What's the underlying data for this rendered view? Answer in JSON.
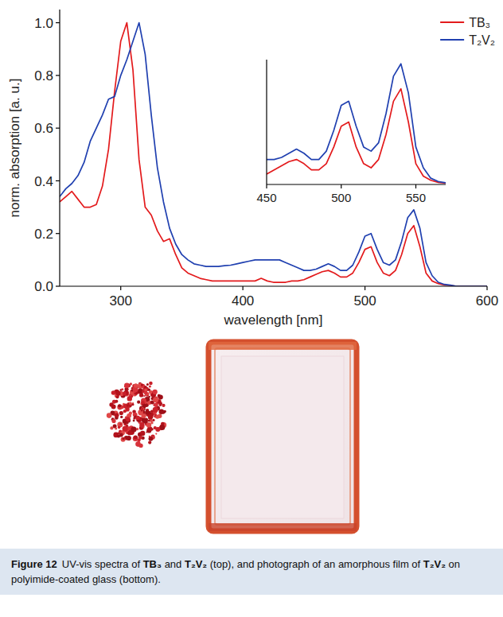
{
  "chart_data": [
    {
      "type": "line",
      "x_label": "wavelength [nm]",
      "y_label": "norm. absorption [a. u.]",
      "x": [
        250,
        255,
        260,
        265,
        270,
        275,
        280,
        285,
        290,
        295,
        300,
        305,
        310,
        315,
        320,
        325,
        330,
        335,
        340,
        345,
        350,
        355,
        360,
        365,
        370,
        375,
        380,
        385,
        390,
        395,
        400,
        405,
        410,
        415,
        420,
        425,
        430,
        435,
        440,
        445,
        450,
        455,
        460,
        465,
        470,
        475,
        480,
        485,
        490,
        495,
        500,
        505,
        510,
        515,
        520,
        525,
        530,
        535,
        540,
        545,
        550,
        555,
        560,
        565,
        570,
        575,
        580,
        585,
        590,
        595,
        600
      ],
      "series": [
        {
          "name": "TB₃",
          "color": "#e31a1c",
          "values": [
            0.32,
            0.34,
            0.36,
            0.33,
            0.3,
            0.3,
            0.31,
            0.38,
            0.52,
            0.74,
            0.93,
            1.0,
            0.82,
            0.48,
            0.3,
            0.27,
            0.21,
            0.17,
            0.18,
            0.12,
            0.07,
            0.05,
            0.04,
            0.03,
            0.025,
            0.02,
            0.02,
            0.02,
            0.02,
            0.02,
            0.02,
            0.02,
            0.02,
            0.03,
            0.02,
            0.015,
            0.015,
            0.015,
            0.02,
            0.02,
            0.025,
            0.035,
            0.045,
            0.055,
            0.06,
            0.05,
            0.035,
            0.035,
            0.05,
            0.09,
            0.14,
            0.15,
            0.09,
            0.05,
            0.04,
            0.06,
            0.12,
            0.2,
            0.23,
            0.15,
            0.05,
            0.02,
            0.01,
            0.005,
            0.003,
            0,
            0,
            0,
            0,
            0,
            0
          ]
        },
        {
          "name": "T₂V₂",
          "color": "#2040b0",
          "values": [
            0.34,
            0.37,
            0.39,
            0.42,
            0.47,
            0.55,
            0.6,
            0.65,
            0.71,
            0.72,
            0.8,
            0.86,
            0.93,
            1.0,
            0.88,
            0.65,
            0.45,
            0.32,
            0.22,
            0.16,
            0.12,
            0.1,
            0.085,
            0.08,
            0.075,
            0.075,
            0.075,
            0.078,
            0.08,
            0.085,
            0.09,
            0.095,
            0.1,
            0.1,
            0.1,
            0.1,
            0.1,
            0.09,
            0.08,
            0.07,
            0.06,
            0.06,
            0.065,
            0.075,
            0.085,
            0.075,
            0.06,
            0.06,
            0.08,
            0.13,
            0.19,
            0.2,
            0.14,
            0.09,
            0.08,
            0.1,
            0.17,
            0.26,
            0.29,
            0.22,
            0.09,
            0.04,
            0.015,
            0.007,
            0.004,
            0,
            0,
            0,
            0,
            0,
            0
          ]
        }
      ],
      "xlim": [
        250,
        600
      ],
      "xticks": [
        300,
        400,
        500,
        600
      ],
      "ylim": [
        0,
        1.05
      ],
      "yticks": [
        {
          "value": 0,
          "label": "0.0"
        },
        0.2,
        0.4,
        0.6,
        0.8,
        {
          "value": 1,
          "label": "1.0"
        }
      ],
      "grid": false,
      "legend": "top-right"
    },
    {
      "type": "line",
      "x": [
        450,
        455,
        460,
        465,
        470,
        475,
        480,
        485,
        490,
        495,
        500,
        505,
        510,
        515,
        520,
        525,
        530,
        535,
        540,
        545,
        550,
        555,
        560,
        565,
        570
      ],
      "series": [
        {
          "name": "TB₃",
          "color": "#e31a1c",
          "values": [
            0.025,
            0.035,
            0.045,
            0.055,
            0.06,
            0.05,
            0.035,
            0.035,
            0.05,
            0.09,
            0.14,
            0.15,
            0.09,
            0.05,
            0.04,
            0.06,
            0.12,
            0.2,
            0.23,
            0.15,
            0.05,
            0.02,
            0.01,
            0.005,
            0.003
          ]
        },
        {
          "name": "T₂V₂",
          "color": "#2040b0",
          "values": [
            0.06,
            0.06,
            0.065,
            0.075,
            0.085,
            0.075,
            0.06,
            0.06,
            0.08,
            0.13,
            0.19,
            0.2,
            0.14,
            0.09,
            0.08,
            0.1,
            0.17,
            0.26,
            0.29,
            0.22,
            0.09,
            0.04,
            0.015,
            0.007,
            0.004
          ]
        }
      ],
      "xlim": [
        450,
        570
      ],
      "xticks": [
        450,
        500,
        550
      ],
      "ylim": [
        0,
        0.3
      ],
      "grid": false,
      "tick_labels": "x"
    }
  ],
  "caption": {
    "label": "Figure 12",
    "segments": [
      "UV-vis spectra of ",
      "TB₃",
      " and ",
      "T₂V₂",
      " (top), and photograph of an amorphous film of ",
      "T₂V₂",
      " on polyimide-coated glass (bottom)."
    ]
  }
}
